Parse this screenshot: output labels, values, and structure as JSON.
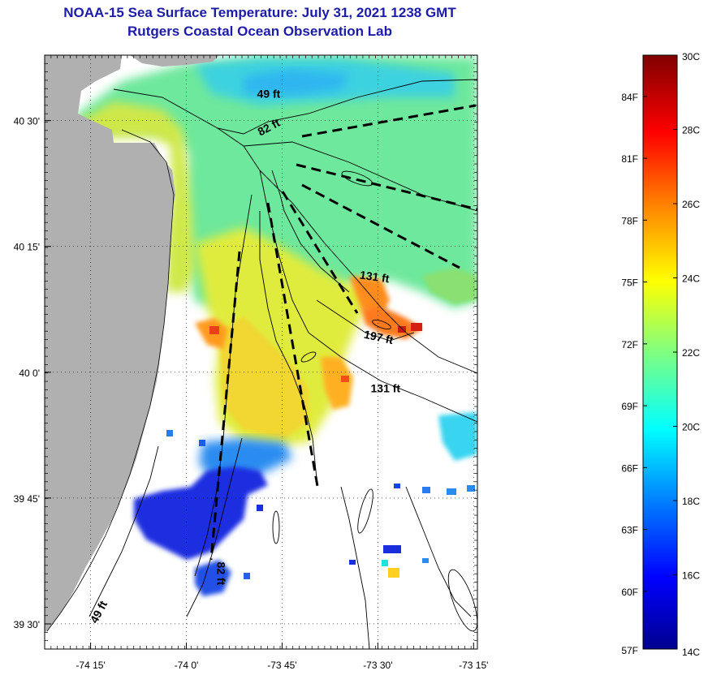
{
  "header": {
    "title_line1": "NOAA-15 Sea Surface Temperature:  July 31, 2021 1238 GMT",
    "title_line2": "Rutgers Coastal Ocean Observation Lab"
  },
  "map": {
    "lat_ticks": [
      {
        "label": "40 30'",
        "lat": 40.5
      },
      {
        "label": "40 15'",
        "lat": 40.25
      },
      {
        "label": "40 0'",
        "lat": 40.0
      },
      {
        "label": "39 45'",
        "lat": 39.75
      },
      {
        "label": "39 30'",
        "lat": 39.5
      }
    ],
    "lon_ticks": [
      {
        "label": "-74 15'",
        "lon": -74.25
      },
      {
        "label": "-74 0'",
        "lon": -74.0
      },
      {
        "label": "-73 45'",
        "lon": -73.75
      },
      {
        "label": "-73 30'",
        "lon": -73.5
      },
      {
        "label": "-73 15'",
        "lon": -73.25
      }
    ],
    "bounds": {
      "lon_min": -74.37,
      "lon_max": -73.24,
      "lat_min": 39.45,
      "lat_max": 40.63
    },
    "depth_labels": [
      {
        "text": "49 ft",
        "lon": -73.785,
        "lat": 40.545,
        "rotate": 0
      },
      {
        "text": "82 ft",
        "lon": -73.78,
        "lat": 40.48,
        "rotate": -28
      },
      {
        "text": "131 ft",
        "lon": -73.51,
        "lat": 40.182,
        "rotate": 8
      },
      {
        "text": "197 ft",
        "lon": -73.5,
        "lat": 40.062,
        "rotate": 12
      },
      {
        "text": "131 ft",
        "lon": -73.48,
        "lat": 39.96,
        "rotate": 0
      },
      {
        "text": "82 ft",
        "lon": -73.92,
        "lat": 39.6,
        "rotate": 90
      },
      {
        "text": "49 ft",
        "lon": -74.22,
        "lat": 39.52,
        "rotate": -62
      }
    ],
    "land_color": "#b0b0b0"
  },
  "colorbar": {
    "celsius_labels": [
      "30C",
      "28C",
      "26C",
      "24C",
      "22C",
      "20C",
      "18C",
      "16C",
      "14C"
    ],
    "fahrenheit_labels": [
      "84F",
      "81F",
      "78F",
      "75F",
      "72F",
      "69F",
      "66F",
      "63F",
      "60F",
      "57F"
    ],
    "fahrenheit_values": [
      84,
      81,
      78,
      75,
      72,
      69,
      66,
      63,
      60,
      57
    ],
    "range_c": [
      14,
      30
    ]
  }
}
